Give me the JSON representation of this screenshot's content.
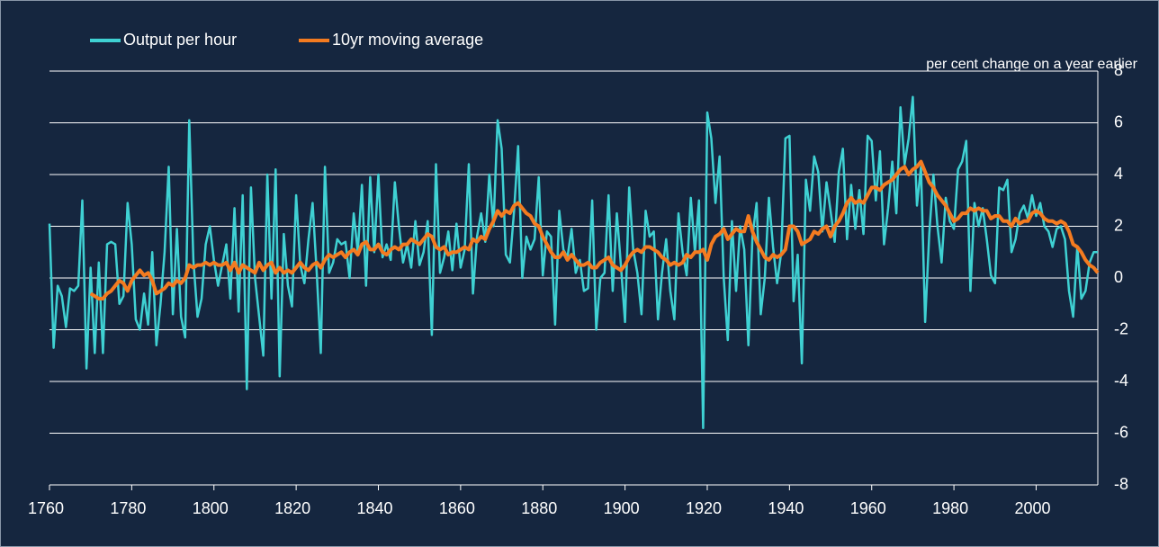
{
  "chart_data": {
    "type": "line",
    "axis_label": "per cent change on a year earlier",
    "x": [
      1760,
      1761,
      1762,
      1763,
      1764,
      1765,
      1766,
      1767,
      1768,
      1769,
      1770,
      1771,
      1772,
      1773,
      1774,
      1775,
      1776,
      1777,
      1778,
      1779,
      1780,
      1781,
      1782,
      1783,
      1784,
      1785,
      1786,
      1787,
      1788,
      1789,
      1790,
      1791,
      1792,
      1793,
      1794,
      1795,
      1796,
      1797,
      1798,
      1799,
      1800,
      1801,
      1802,
      1803,
      1804,
      1805,
      1806,
      1807,
      1808,
      1809,
      1810,
      1811,
      1812,
      1813,
      1814,
      1815,
      1816,
      1817,
      1818,
      1819,
      1820,
      1821,
      1822,
      1823,
      1824,
      1825,
      1826,
      1827,
      1828,
      1829,
      1830,
      1831,
      1832,
      1833,
      1834,
      1835,
      1836,
      1837,
      1838,
      1839,
      1840,
      1841,
      1842,
      1843,
      1844,
      1845,
      1846,
      1847,
      1848,
      1849,
      1850,
      1851,
      1852,
      1853,
      1854,
      1855,
      1856,
      1857,
      1858,
      1859,
      1860,
      1861,
      1862,
      1863,
      1864,
      1865,
      1866,
      1867,
      1868,
      1869,
      1870,
      1871,
      1872,
      1873,
      1874,
      1875,
      1876,
      1877,
      1878,
      1879,
      1880,
      1881,
      1882,
      1883,
      1884,
      1885,
      1886,
      1887,
      1888,
      1889,
      1890,
      1891,
      1892,
      1893,
      1894,
      1895,
      1896,
      1897,
      1898,
      1899,
      1900,
      1901,
      1902,
      1903,
      1904,
      1905,
      1906,
      1907,
      1908,
      1909,
      1910,
      1911,
      1912,
      1913,
      1914,
      1915,
      1916,
      1917,
      1918,
      1919,
      1920,
      1921,
      1922,
      1923,
      1924,
      1925,
      1926,
      1927,
      1928,
      1929,
      1930,
      1931,
      1932,
      1933,
      1934,
      1935,
      1936,
      1937,
      1938,
      1939,
      1940,
      1941,
      1942,
      1943,
      1944,
      1945,
      1946,
      1947,
      1948,
      1949,
      1950,
      1951,
      1952,
      1953,
      1954,
      1955,
      1956,
      1957,
      1958,
      1959,
      1960,
      1961,
      1962,
      1963,
      1964,
      1965,
      1966,
      1967,
      1968,
      1969,
      1970,
      1971,
      1972,
      1973,
      1974,
      1975,
      1976,
      1977,
      1978,
      1979,
      1980,
      1981,
      1982,
      1983,
      1984,
      1985,
      1986,
      1987,
      1988,
      1989,
      1990,
      1991,
      1992,
      1993,
      1994,
      1995,
      1996,
      1997,
      1998,
      1999,
      2000,
      2001,
      2002,
      2003,
      2004,
      2005,
      2006,
      2007,
      2008,
      2009,
      2010,
      2011,
      2012,
      2013,
      2014,
      2015
    ],
    "series": [
      {
        "name": "Output per hour",
        "color": "#3fd1d3",
        "values": [
          2.1,
          -2.7,
          -0.3,
          -0.7,
          -1.9,
          -0.4,
          -0.5,
          -0.3,
          3.0,
          -3.5,
          0.4,
          -2.9,
          0.6,
          -2.9,
          1.3,
          1.4,
          1.3,
          -1.0,
          -0.7,
          2.9,
          1.3,
          -1.6,
          -2.0,
          -0.6,
          -1.8,
          1.0,
          -2.6,
          -1.0,
          1.0,
          4.3,
          -1.4,
          1.9,
          -1.5,
          -2.3,
          6.1,
          0.7,
          -1.5,
          -0.8,
          1.3,
          2.0,
          0.7,
          -0.3,
          0.5,
          1.3,
          -0.8,
          2.7,
          -1.3,
          3.2,
          -4.3,
          3.5,
          0.0,
          -1.5,
          -3.0,
          4.0,
          -0.8,
          4.2,
          -3.8,
          1.7,
          -0.3,
          -1.1,
          3.2,
          0.5,
          -0.2,
          1.5,
          2.9,
          0.2,
          -2.9,
          4.3,
          0.2,
          0.6,
          1.5,
          1.3,
          1.4,
          0.0,
          2.5,
          1.0,
          3.6,
          -0.3,
          3.9,
          1.0,
          4.0,
          0.8,
          1.3,
          0.7,
          3.7,
          2.0,
          0.6,
          1.3,
          0.4,
          2.2,
          0.5,
          1.0,
          2.2,
          -2.2,
          4.4,
          0.2,
          0.8,
          1.8,
          0.3,
          2.1,
          0.4,
          1.1,
          4.4,
          -0.6,
          1.6,
          2.5,
          1.4,
          4.0,
          2.0,
          6.1,
          5.0,
          0.9,
          0.6,
          2.6,
          5.1,
          0.0,
          1.6,
          1.1,
          1.5,
          3.9,
          0.1,
          1.8,
          1.6,
          -1.8,
          2.6,
          1.1,
          0.8,
          1.9,
          0.2,
          0.7,
          -0.5,
          -0.4,
          3.0,
          -2.0,
          0.0,
          0.2,
          3.2,
          -0.5,
          2.5,
          0.5,
          -1.7,
          3.5,
          1.1,
          0.2,
          -1.4,
          2.6,
          1.6,
          1.8,
          -1.6,
          0.2,
          1.5,
          -0.5,
          -1.6,
          2.5,
          1.0,
          0.1,
          3.1,
          1.0,
          3.0,
          -5.8,
          6.4,
          5.4,
          2.9,
          4.7,
          0.0,
          -2.4,
          2.2,
          -0.5,
          2.0,
          1.1,
          -2.6,
          1.6,
          2.9,
          -1.4,
          0.0,
          3.1,
          1.2,
          -0.2,
          1.0,
          5.4,
          5.5,
          -0.9,
          0.9,
          -3.3,
          3.8,
          2.6,
          4.7,
          4.1,
          1.8,
          3.7,
          2.6,
          1.4,
          4.1,
          5.0,
          1.5,
          3.6,
          1.9,
          3.4,
          1.7,
          5.5,
          5.3,
          3.0,
          4.9,
          1.3,
          2.7,
          4.5,
          2.5,
          6.6,
          4.4,
          5.4,
          7.0,
          2.8,
          4.3,
          -1.7,
          1.7,
          4.0,
          2.0,
          0.6,
          3.1,
          2.2,
          1.9,
          4.2,
          4.5,
          5.3,
          -0.5,
          2.9,
          2.0,
          2.7,
          1.5,
          0.1,
          -0.2,
          3.5,
          3.4,
          3.8,
          1.0,
          1.5,
          2.5,
          2.8,
          2.3,
          3.2,
          2.4,
          2.9,
          2.0,
          1.8,
          1.2,
          1.9,
          2.0,
          1.5,
          -0.5,
          -1.5,
          1.2,
          -0.8,
          -0.5,
          0.6,
          1.0,
          1.0
        ]
      },
      {
        "name": "10yr moving average",
        "color": "#f47b20",
        "values": [
          null,
          null,
          null,
          null,
          null,
          null,
          null,
          null,
          null,
          null,
          -0.6,
          -0.7,
          -0.8,
          -0.8,
          -0.6,
          -0.5,
          -0.3,
          -0.1,
          -0.2,
          -0.5,
          -0.1,
          0.1,
          0.3,
          0.1,
          0.2,
          -0.1,
          -0.6,
          -0.5,
          -0.4,
          -0.2,
          -0.3,
          -0.1,
          -0.2,
          0.0,
          0.5,
          0.4,
          0.5,
          0.5,
          0.6,
          0.5,
          0.6,
          0.5,
          0.5,
          0.6,
          0.3,
          0.6,
          0.2,
          0.5,
          0.4,
          0.3,
          0.2,
          0.6,
          0.3,
          0.5,
          0.6,
          0.2,
          0.4,
          0.2,
          0.3,
          0.2,
          0.4,
          0.6,
          0.4,
          0.3,
          0.5,
          0.6,
          0.4,
          0.7,
          0.9,
          0.8,
          0.9,
          1.0,
          0.8,
          1.0,
          1.1,
          0.9,
          1.3,
          1.4,
          1.1,
          1.1,
          1.3,
          1.0,
          0.9,
          1.1,
          1.2,
          1.1,
          1.3,
          1.3,
          1.5,
          1.4,
          1.3,
          1.5,
          1.7,
          1.6,
          1.2,
          1.1,
          1.2,
          0.9,
          1.0,
          1.0,
          1.1,
          1.2,
          1.1,
          1.5,
          1.4,
          1.6,
          1.5,
          1.9,
          2.2,
          2.6,
          2.4,
          2.6,
          2.5,
          2.8,
          2.9,
          2.7,
          2.5,
          2.4,
          2.1,
          2.0,
          1.6,
          1.3,
          1.0,
          0.8,
          0.8,
          1.0,
          0.7,
          0.9,
          0.7,
          0.5,
          0.5,
          0.6,
          0.4,
          0.4,
          0.6,
          0.7,
          0.8,
          0.5,
          0.4,
          0.3,
          0.5,
          0.8,
          1.0,
          1.1,
          1.0,
          1.2,
          1.2,
          1.1,
          1.0,
          0.8,
          0.7,
          0.5,
          0.6,
          0.5,
          0.6,
          0.9,
          0.8,
          1.0,
          1.0,
          1.1,
          0.7,
          1.3,
          1.6,
          1.7,
          1.9,
          1.5,
          1.7,
          1.9,
          1.8,
          1.8,
          2.4,
          1.8,
          1.4,
          1.1,
          0.8,
          0.7,
          0.9,
          0.8,
          0.9,
          1.1,
          2.0,
          2.0,
          1.8,
          1.3,
          1.4,
          1.5,
          1.8,
          1.7,
          1.9,
          2.0,
          1.6,
          2.0,
          2.2,
          2.5,
          2.9,
          3.1,
          2.9,
          3.0,
          2.9,
          3.2,
          3.5,
          3.5,
          3.4,
          3.6,
          3.7,
          3.8,
          4.0,
          4.2,
          4.3,
          4.0,
          4.2,
          4.3,
          4.5,
          4.1,
          3.7,
          3.5,
          3.2,
          3.0,
          2.8,
          2.5,
          2.2,
          2.3,
          2.5,
          2.5,
          2.7,
          2.6,
          2.7,
          2.6,
          2.6,
          2.3,
          2.4,
          2.4,
          2.2,
          2.2,
          2.0,
          2.3,
          2.1,
          2.2,
          2.2,
          2.5,
          2.6,
          2.5,
          2.3,
          2.2,
          2.2,
          2.1,
          2.2,
          2.1,
          1.8,
          1.3,
          1.2,
          1.0,
          0.7,
          0.5,
          0.4,
          0.2
        ]
      }
    ],
    "xlim": [
      1760,
      2015
    ],
    "xticks": [
      1760,
      1780,
      1800,
      1820,
      1840,
      1860,
      1880,
      1900,
      1920,
      1940,
      1960,
      1980,
      2000
    ],
    "ylim": [
      -8,
      8
    ],
    "yticks": [
      -8,
      -6,
      -4,
      -2,
      0,
      2,
      4,
      6,
      8
    ],
    "grid": true,
    "legend": "top-left"
  }
}
